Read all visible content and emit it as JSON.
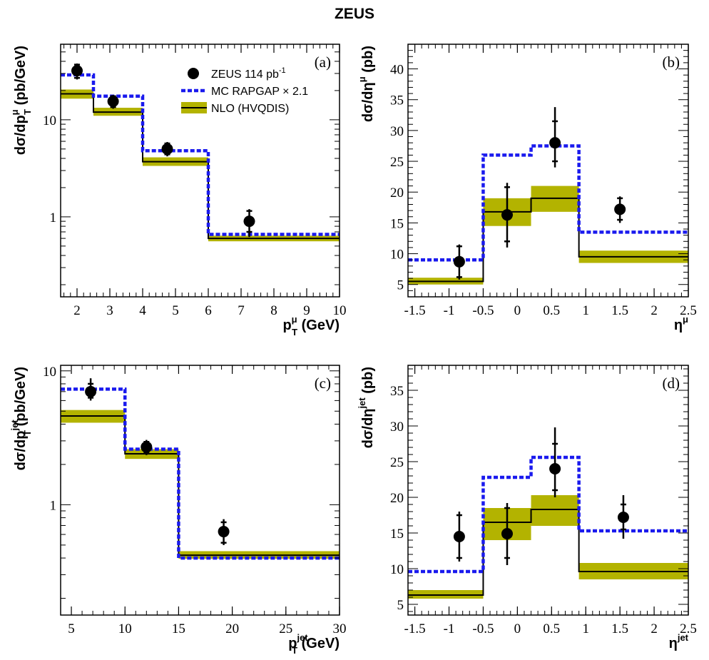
{
  "figure_title": "ZEUS",
  "colors": {
    "mc": "#1a1aee",
    "nlo_band": "#b3b300",
    "nlo_line": "#000000",
    "data": "#000000"
  },
  "legend": {
    "data": "ZEUS 114 pb",
    "data_sup": "-1",
    "mc": "MC RAPGAP × 2.1",
    "nlo": "NLO (HVQDIS)"
  },
  "chart_data": [
    {
      "tag": "(a)",
      "type": "histogram",
      "ylog": true,
      "ylabel_main": "dσ/dp",
      "ylabel_sub": "T",
      "ylabel_sup": "μ",
      "ylabel_tail": " (pb/GeV)",
      "xlabel_main": "p",
      "xlabel_sub": "T",
      "xlabel_sup": "μ",
      "xlabel_tail": " (GeV)",
      "xlim": [
        1.5,
        10
      ],
      "ylim": [
        0.15,
        60
      ],
      "xticks": [
        2,
        3,
        4,
        5,
        6,
        7,
        8,
        9,
        10
      ],
      "yticks": [
        1,
        10
      ],
      "ytick_labels": [
        "1",
        "10"
      ],
      "bins": [
        1.5,
        2.5,
        4,
        6,
        10
      ],
      "nlo": [
        18.5,
        12.0,
        3.7,
        0.6
      ],
      "nlo_low": [
        16.5,
        11.0,
        3.35,
        0.56
      ],
      "nlo_high": [
        20.5,
        13.3,
        4.1,
        0.64
      ],
      "mc": [
        29,
        17.5,
        4.8,
        0.66
      ],
      "data": {
        "x": [
          2.0,
          3.1,
          4.75,
          7.25
        ],
        "y": [
          32,
          15.5,
          5.0,
          0.9
        ],
        "stat_low": [
          27,
          13.5,
          4.4,
          0.7
        ],
        "stat_high": [
          37,
          17.5,
          5.7,
          1.15
        ],
        "tot_low": [
          26,
          13.0,
          4.2,
          0.62
        ],
        "tot_high": [
          38,
          18.0,
          5.9,
          1.2
        ]
      }
    },
    {
      "tag": "(b)",
      "type": "histogram",
      "ylog": false,
      "ylabel_main": "dσ/dη",
      "ylabel_sub": "",
      "ylabel_sup": "μ",
      "ylabel_tail": " (pb)",
      "xlabel_main": "η",
      "xlabel_sub": "",
      "xlabel_sup": "μ",
      "xlabel_tail": "",
      "xlim": [
        -1.6,
        2.5
      ],
      "ylim": [
        3,
        44
      ],
      "xticks": [
        -1.5,
        -1,
        -0.5,
        0,
        0.5,
        1,
        1.5,
        2,
        2.5
      ],
      "xtick_labels": [
        "-1.5",
        "-1",
        "-0.5",
        "0",
        "0.5",
        "1",
        "1.5",
        "2",
        "2.5"
      ],
      "yticks": [
        5,
        10,
        15,
        20,
        25,
        30,
        35,
        40
      ],
      "bins": [
        -1.6,
        -0.5,
        0.2,
        0.9,
        2.5
      ],
      "nlo": [
        5.5,
        16.8,
        19.0,
        9.5
      ],
      "nlo_low": [
        5.0,
        14.5,
        16.8,
        8.5
      ],
      "nlo_high": [
        6.1,
        19.0,
        21.0,
        10.5
      ],
      "mc": [
        9.0,
        26.0,
        27.5,
        13.5
      ],
      "data": {
        "x": [
          -0.85,
          -0.15,
          0.55,
          1.5
        ],
        "y": [
          8.7,
          16.3,
          28.0,
          17.2
        ],
        "stat_low": [
          6.2,
          12.0,
          25.0,
          15.5
        ],
        "stat_high": [
          11.2,
          20.8,
          31.5,
          19.0
        ],
        "tot_low": [
          5.8,
          11.0,
          24.0,
          15.0
        ],
        "tot_high": [
          11.5,
          21.5,
          33.8,
          19.3
        ]
      }
    },
    {
      "tag": "(c)",
      "type": "histogram",
      "ylog": true,
      "ylabel_main": "dσ/dp",
      "ylabel_sub": "T",
      "ylabel_sup": "jet",
      "ylabel_tail": " (pb/GeV)",
      "xlabel_main": "p",
      "xlabel_sub": "T",
      "xlabel_sup": "jet",
      "xlabel_tail": " (GeV)",
      "xlim": [
        4,
        30
      ],
      "ylim": [
        0.15,
        11
      ],
      "xticks": [
        5,
        10,
        15,
        20,
        25,
        30
      ],
      "yticks": [
        1,
        10
      ],
      "ytick_labels": [
        "1",
        "10"
      ],
      "bins": [
        4,
        10,
        15,
        30
      ],
      "nlo": [
        4.6,
        2.4,
        0.42
      ],
      "nlo_low": [
        4.1,
        2.2,
        0.395
      ],
      "nlo_high": [
        5.1,
        2.6,
        0.45
      ],
      "mc": [
        7.3,
        2.6,
        0.4
      ],
      "data": {
        "x": [
          6.8,
          12.0,
          19.2
        ],
        "y": [
          7.0,
          2.7,
          0.63
        ],
        "stat_low": [
          6.3,
          2.45,
          0.52
        ],
        "stat_high": [
          8.0,
          2.95,
          0.74
        ],
        "tot_low": [
          6.0,
          2.35,
          0.5
        ],
        "tot_high": [
          8.8,
          3.05,
          0.78
        ]
      }
    },
    {
      "tag": "(d)",
      "type": "histogram",
      "ylog": false,
      "ylabel_main": "dσ/dη",
      "ylabel_sub": "",
      "ylabel_sup": "jet",
      "ylabel_tail": " (pb)",
      "xlabel_main": "η",
      "xlabel_sub": "",
      "xlabel_sup": "jet",
      "xlabel_tail": "",
      "xlim": [
        -1.6,
        2.5
      ],
      "ylim": [
        3.5,
        38.5
      ],
      "xticks": [
        -1.5,
        -1,
        -0.5,
        0,
        0.5,
        1,
        1.5,
        2,
        2.5
      ],
      "xtick_labels": [
        "-1.5",
        "-1",
        "-0.5",
        "0",
        "0.5",
        "1",
        "1.5",
        "2",
        "2.5"
      ],
      "yticks": [
        5,
        10,
        15,
        20,
        25,
        30,
        35
      ],
      "bins": [
        -1.6,
        -0.5,
        0.2,
        0.9,
        2.5
      ],
      "nlo": [
        6.3,
        16.5,
        18.3,
        9.6
      ],
      "nlo_low": [
        5.8,
        14.0,
        16.0,
        8.5
      ],
      "nlo_high": [
        7.0,
        18.5,
        20.3,
        10.8
      ],
      "mc": [
        9.6,
        22.8,
        25.6,
        15.3
      ],
      "data": {
        "x": [
          -0.85,
          -0.15,
          0.55,
          1.55
        ],
        "y": [
          14.5,
          14.9,
          24.0,
          17.2
        ],
        "stat_low": [
          11.5,
          11.5,
          21.0,
          15.5
        ],
        "stat_high": [
          17.5,
          18.5,
          27.5,
          19.0
        ],
        "tot_low": [
          11.0,
          10.5,
          20.0,
          14.2
        ],
        "tot_high": [
          18.0,
          19.2,
          29.8,
          20.3
        ]
      }
    }
  ]
}
